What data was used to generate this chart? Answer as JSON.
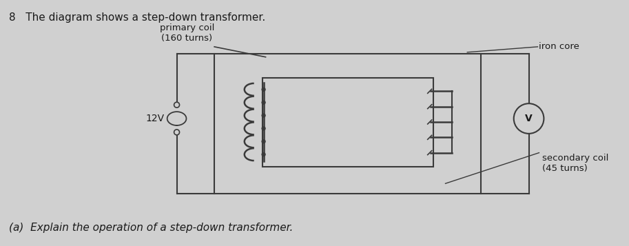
{
  "bg_color": "#d0d0d0",
  "title_text": "8   The diagram shows a step-down transformer.",
  "title_fontsize": 11,
  "question_text": "(a)  Explain the operation of a step-down transformer.",
  "question_fontsize": 11,
  "primary_label": "primary coil\n(160 turns)",
  "secondary_label": "secondary coil\n(45 turns)",
  "iron_core_label": "iron core",
  "voltage_label": "12V",
  "voltmeter_label": "V",
  "line_color": "#3a3a3a",
  "text_color": "#1a1a1a"
}
